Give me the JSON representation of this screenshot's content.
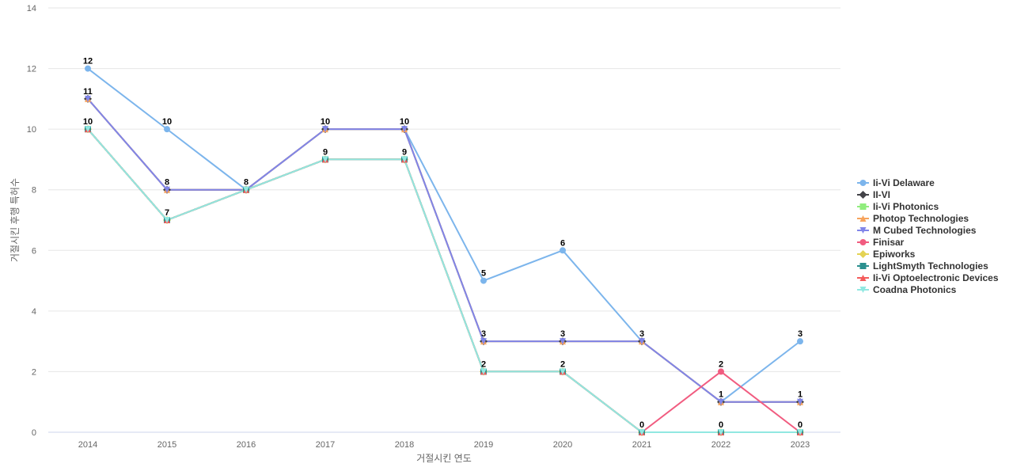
{
  "chart_data": {
    "type": "line",
    "title": "",
    "xlabel": "거절시킨 연도",
    "ylabel": "거절시킨 후행 특허수",
    "x": [
      "2014",
      "2015",
      "2016",
      "2017",
      "2018",
      "2019",
      "2020",
      "2021",
      "2022",
      "2023"
    ],
    "ylim": [
      0,
      14
    ],
    "yticks": [
      0,
      2,
      4,
      6,
      8,
      10,
      12,
      14
    ],
    "grid": true,
    "legend_position": "right",
    "series": [
      {
        "name": "Ii-Vi Delaware",
        "color": "#7cb5ec",
        "marker": "circle",
        "values": [
          12,
          10,
          8,
          10,
          10,
          5,
          6,
          3,
          1,
          3
        ]
      },
      {
        "name": "II-VI",
        "color": "#434348",
        "marker": "diamond",
        "values": [
          11,
          8,
          8,
          10,
          10,
          3,
          3,
          3,
          1,
          1
        ]
      },
      {
        "name": "Ii-Vi Photonics",
        "color": "#90ed7d",
        "marker": "square",
        "values": [
          10,
          7,
          8,
          9,
          9,
          2,
          2,
          0,
          0,
          0
        ]
      },
      {
        "name": "Photop Technologies",
        "color": "#f7a35c",
        "marker": "triangle",
        "values": [
          11,
          8,
          8,
          10,
          10,
          3,
          3,
          3,
          1,
          1
        ]
      },
      {
        "name": "M Cubed Technologies",
        "color": "#8085e9",
        "marker": "triangle-down",
        "values": [
          11,
          8,
          8,
          10,
          10,
          3,
          3,
          3,
          1,
          1
        ]
      },
      {
        "name": "Finisar",
        "color": "#f15c80",
        "marker": "circle",
        "values": [
          10,
          7,
          8,
          9,
          9,
          2,
          2,
          0,
          2,
          0
        ]
      },
      {
        "name": "Epiworks",
        "color": "#e4d354",
        "marker": "diamond",
        "values": [
          10,
          7,
          8,
          9,
          9,
          2,
          2,
          0,
          0,
          0
        ]
      },
      {
        "name": "LightSmyth Technologies",
        "color": "#2b908f",
        "marker": "square",
        "values": [
          10,
          7,
          8,
          9,
          9,
          2,
          2,
          0,
          0,
          0
        ]
      },
      {
        "name": "Ii-Vi Optoelectronic Devices",
        "color": "#f45b5b",
        "marker": "triangle",
        "values": [
          10,
          7,
          8,
          9,
          9,
          2,
          2,
          0,
          0,
          0
        ]
      },
      {
        "name": "Coadna Photonics",
        "color": "#91e8e1",
        "marker": "triangle-down",
        "values": [
          10,
          7,
          8,
          9,
          9,
          2,
          2,
          0,
          0,
          0
        ]
      }
    ],
    "data_labels": [
      {
        "x": "2014",
        "y": 12,
        "text": "12"
      },
      {
        "x": "2014",
        "y": 11,
        "text": "11"
      },
      {
        "x": "2014",
        "y": 10,
        "text": "10"
      },
      {
        "x": "2015",
        "y": 10,
        "text": "10"
      },
      {
        "x": "2015",
        "y": 8,
        "text": "8"
      },
      {
        "x": "2015",
        "y": 7,
        "text": "7"
      },
      {
        "x": "2016",
        "y": 8,
        "text": "8"
      },
      {
        "x": "2017",
        "y": 10,
        "text": "10"
      },
      {
        "x": "2017",
        "y": 9,
        "text": "9"
      },
      {
        "x": "2018",
        "y": 10,
        "text": "10"
      },
      {
        "x": "2018",
        "y": 9,
        "text": "9"
      },
      {
        "x": "2019",
        "y": 5,
        "text": "5"
      },
      {
        "x": "2019",
        "y": 3,
        "text": "3"
      },
      {
        "x": "2019",
        "y": 2,
        "text": "2"
      },
      {
        "x": "2020",
        "y": 6,
        "text": "6"
      },
      {
        "x": "2020",
        "y": 3,
        "text": "3"
      },
      {
        "x": "2020",
        "y": 2,
        "text": "2"
      },
      {
        "x": "2021",
        "y": 3,
        "text": "3"
      },
      {
        "x": "2021",
        "y": 0,
        "text": "0"
      },
      {
        "x": "2022",
        "y": 2,
        "text": "2"
      },
      {
        "x": "2022",
        "y": 1,
        "text": "1"
      },
      {
        "x": "2022",
        "y": 0,
        "text": "0"
      },
      {
        "x": "2023",
        "y": 3,
        "text": "3"
      },
      {
        "x": "2023",
        "y": 1,
        "text": "1"
      },
      {
        "x": "2023",
        "y": 0,
        "text": "0"
      }
    ]
  }
}
